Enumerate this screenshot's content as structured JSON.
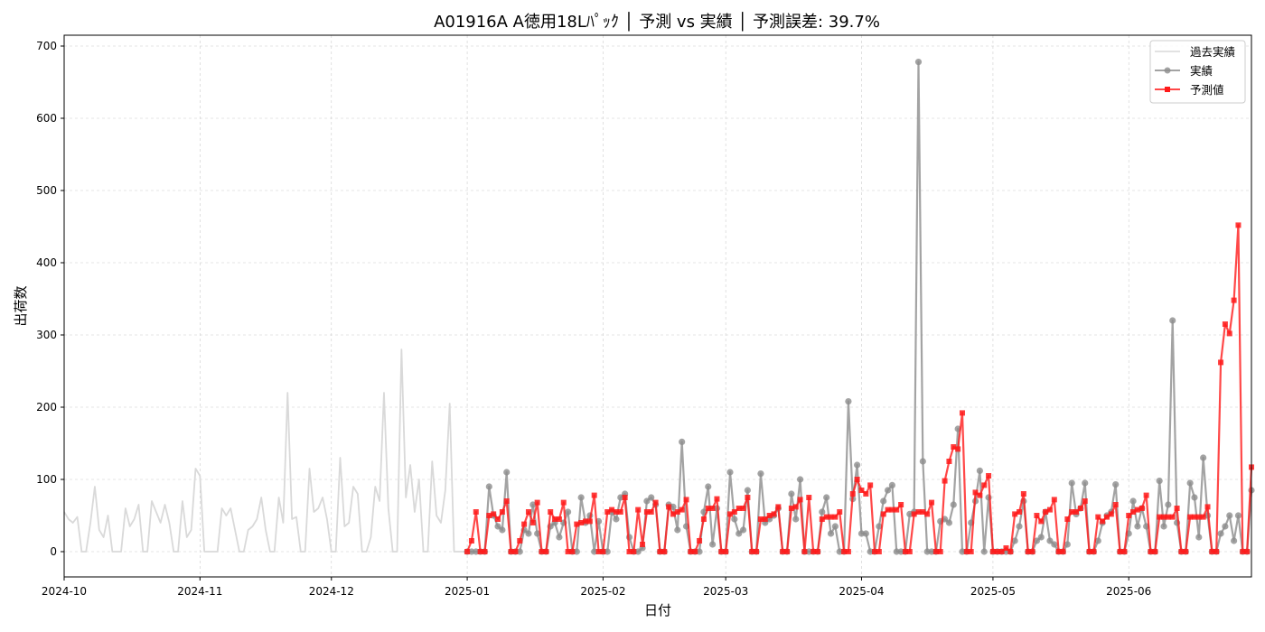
{
  "chart_data": {
    "type": "line",
    "title": "A01916A A徳用18Lﾊﾟｯｸ │ 予測 vs 実績 │ 予測誤差: 39.7%",
    "xlabel": "日付",
    "ylabel": "出荷数",
    "xlim": [
      "2024-10-01",
      "2025-06-29"
    ],
    "ylim": [
      -35,
      715
    ],
    "x_ticks": [
      "2024-10",
      "2024-11",
      "2024-12",
      "2025-01",
      "2025-02",
      "2025-03",
      "2025-04",
      "2025-05",
      "2025-06"
    ],
    "y_ticks": [
      0,
      100,
      200,
      300,
      400,
      500,
      600,
      700
    ],
    "grid": true,
    "legend_position": "top-right",
    "colors": {
      "historical": "#d9d9d9",
      "actual": "#8c8c8c",
      "predicted": "#ff1a1a"
    },
    "series": [
      {
        "name": "過去実績",
        "start_date": "2024-10-01",
        "values": [
          55,
          45,
          40,
          48,
          0,
          0,
          40,
          90,
          30,
          20,
          50,
          0,
          0,
          0,
          60,
          35,
          45,
          65,
          0,
          0,
          70,
          55,
          40,
          65,
          40,
          0,
          0,
          70,
          20,
          30,
          115,
          105,
          0,
          0,
          0,
          0,
          60,
          50,
          60,
          30,
          0,
          0,
          30,
          35,
          45,
          75,
          30,
          0,
          0,
          75,
          40,
          220,
          45,
          48,
          0,
          0,
          115,
          55,
          60,
          75,
          45,
          0,
          0,
          130,
          35,
          40,
          90,
          80,
          0,
          0,
          20,
          90,
          70,
          220,
          60,
          0,
          0,
          280,
          75,
          120,
          55,
          100,
          0,
          0,
          125,
          50,
          40,
          85,
          205,
          0,
          0,
          0,
          0,
          0
        ]
      },
      {
        "name": "実績",
        "start_date": "2025-01-01",
        "values": [
          0,
          0,
          0,
          0,
          0,
          90,
          50,
          35,
          30,
          110,
          0,
          0,
          0,
          30,
          25,
          65,
          25,
          0,
          0,
          35,
          40,
          20,
          40,
          55,
          0,
          0,
          75,
          40,
          50,
          0,
          42,
          0,
          0,
          55,
          45,
          75,
          80,
          20,
          0,
          0,
          5,
          70,
          75,
          65,
          0,
          0,
          65,
          62,
          30,
          152,
          35,
          0,
          0,
          0,
          55,
          90,
          10,
          60,
          0,
          0,
          110,
          45,
          25,
          30,
          85,
          0,
          0,
          108,
          40,
          45,
          50,
          60,
          0,
          0,
          80,
          45,
          100,
          0,
          0,
          0,
          0,
          55,
          75,
          25,
          35,
          0,
          0,
          208,
          73,
          120,
          25,
          25,
          0,
          0,
          35,
          70,
          85,
          92,
          0,
          0,
          0,
          52,
          55,
          678,
          125,
          0,
          0,
          0,
          42,
          45,
          40,
          65,
          170,
          0,
          0,
          40,
          70,
          112,
          0,
          75,
          0,
          0,
          0,
          0,
          0,
          15,
          35,
          70,
          0,
          0,
          15,
          20,
          55,
          15,
          10,
          0,
          0,
          10,
          95,
          52,
          60,
          95,
          0,
          0,
          15,
          40,
          50,
          55,
          93,
          0,
          0,
          25,
          70,
          35,
          60,
          35,
          0,
          0,
          98,
          35,
          65,
          320,
          40,
          0,
          0,
          95,
          75,
          20,
          130,
          50,
          0,
          0,
          25,
          35,
          50,
          15,
          50,
          0,
          0,
          85
        ]
      },
      {
        "name": "予測値",
        "start_date": "2025-01-01",
        "values": [
          0,
          15,
          55,
          0,
          0,
          50,
          52,
          45,
          55,
          70,
          0,
          0,
          15,
          38,
          55,
          40,
          68,
          0,
          0,
          55,
          45,
          45,
          68,
          0,
          0,
          38,
          40,
          42,
          42,
          78,
          0,
          0,
          55,
          58,
          55,
          55,
          75,
          0,
          0,
          58,
          10,
          55,
          55,
          68,
          0,
          0,
          62,
          52,
          55,
          58,
          72,
          0,
          0,
          15,
          45,
          60,
          60,
          73,
          0,
          0,
          52,
          55,
          60,
          60,
          75,
          0,
          0,
          45,
          45,
          50,
          52,
          62,
          0,
          0,
          60,
          62,
          72,
          0,
          75,
          0,
          0,
          45,
          48,
          48,
          48,
          55,
          0,
          0,
          80,
          100,
          85,
          80,
          92,
          0,
          0,
          52,
          58,
          58,
          58,
          65,
          0,
          0,
          52,
          55,
          55,
          52,
          68,
          0,
          0,
          98,
          125,
          145,
          142,
          192,
          0,
          0,
          82,
          78,
          92,
          105,
          0,
          0,
          0,
          5,
          0,
          52,
          55,
          80,
          0,
          0,
          50,
          42,
          55,
          58,
          72,
          0,
          0,
          45,
          55,
          55,
          60,
          70,
          0,
          0,
          48,
          42,
          48,
          52,
          65,
          0,
          0,
          50,
          55,
          58,
          60,
          78,
          0,
          0,
          48,
          48,
          48,
          48,
          60,
          0,
          0,
          48,
          48,
          48,
          48,
          62,
          0,
          0,
          262,
          315,
          302,
          348,
          452,
          0,
          0,
          117
        ]
      }
    ]
  },
  "legend": [
    {
      "label": "過去実績",
      "bind": "chart_data.series.0.name"
    },
    {
      "label": "実績",
      "bind": "chart_data.series.1.name"
    },
    {
      "label": "予測値",
      "bind": "chart_data.series.2.name"
    }
  ]
}
